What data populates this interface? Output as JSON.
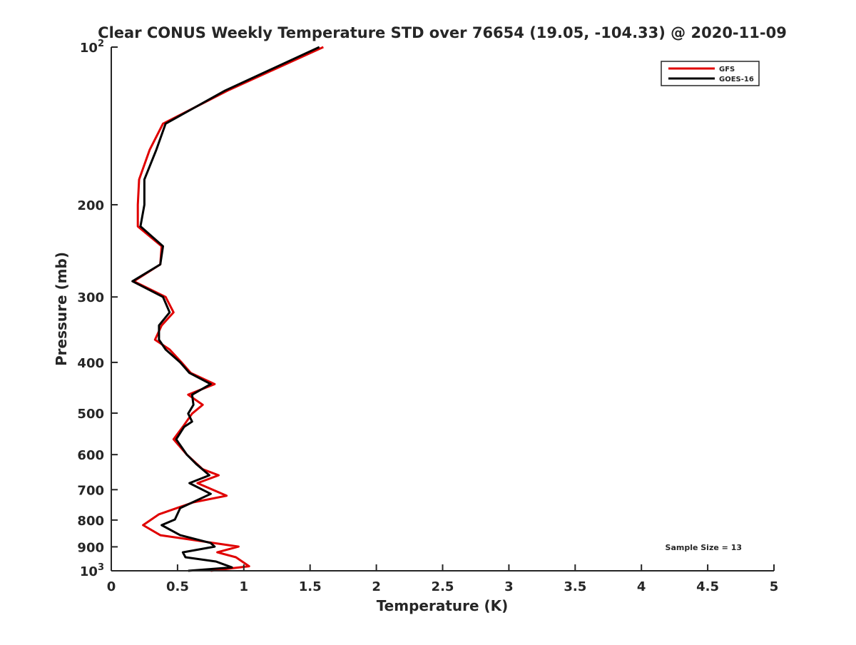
{
  "chart_data": {
    "type": "line",
    "title": "Clear CONUS Weekly Temperature STD over 76654 (19.05, -104.33) @ 2020-11-09",
    "xlabel": "Temperature (K)",
    "ylabel": "Pressure (mb)",
    "xlim": [
      0,
      5
    ],
    "ylim": [
      100,
      1000
    ],
    "yscale": "log",
    "yreversed": true,
    "grid": false,
    "x_ticks": [
      "0",
      "0.5",
      "1",
      "1.5",
      "2",
      "2.5",
      "3",
      "3.5",
      "4",
      "4.5",
      "5"
    ],
    "x_tick_values": [
      0,
      0.5,
      1,
      1.5,
      2,
      2.5,
      3,
      3.5,
      4,
      4.5,
      5
    ],
    "y_ticks": [
      {
        "value": 100,
        "base": "10",
        "exp": "2"
      },
      {
        "value": 200,
        "label": "200"
      },
      {
        "value": 300,
        "label": "300"
      },
      {
        "value": 400,
        "label": "400"
      },
      {
        "value": 500,
        "label": "500"
      },
      {
        "value": 600,
        "label": "600"
      },
      {
        "value": 700,
        "label": "700"
      },
      {
        "value": 800,
        "label": "800"
      },
      {
        "value": 900,
        "label": "900"
      },
      {
        "value": 1000,
        "base": "10",
        "exp": "3"
      }
    ],
    "legend_position": "top-right",
    "annotation": "Sample Size = 13",
    "series": [
      {
        "name": "GFS",
        "color": "#e00000",
        "pressure": [
          100,
          121,
          140,
          157,
          179,
          200,
          220,
          240,
          260,
          280,
          300,
          321,
          340,
          362,
          378,
          400,
          419,
          440,
          461,
          482,
          501,
          531,
          561,
          600,
          640,
          657,
          680,
          719,
          740,
          780,
          818,
          855,
          899,
          922,
          942,
          980,
          1000
        ],
        "temperature": [
          1.6,
          0.88,
          0.39,
          0.29,
          0.21,
          0.2,
          0.2,
          0.38,
          0.37,
          0.17,
          0.41,
          0.47,
          0.38,
          0.33,
          0.44,
          0.53,
          0.6,
          0.78,
          0.58,
          0.69,
          0.61,
          0.54,
          0.47,
          0.57,
          0.69,
          0.81,
          0.65,
          0.87,
          0.62,
          0.36,
          0.24,
          0.37,
          0.96,
          0.8,
          0.94,
          1.04,
          0.75
        ]
      },
      {
        "name": "GOES-16",
        "color": "#000000",
        "pressure": [
          100,
          121,
          140,
          157,
          179,
          200,
          220,
          240,
          260,
          280,
          300,
          321,
          340,
          362,
          378,
          400,
          419,
          440,
          461,
          482,
          501,
          519,
          531,
          561,
          600,
          625,
          657,
          680,
          713,
          759,
          798,
          818,
          855,
          885,
          899,
          922,
          942,
          960,
          985,
          1000
        ],
        "temperature": [
          1.57,
          0.86,
          0.41,
          0.34,
          0.25,
          0.25,
          0.22,
          0.39,
          0.37,
          0.16,
          0.39,
          0.44,
          0.36,
          0.36,
          0.41,
          0.52,
          0.59,
          0.75,
          0.61,
          0.62,
          0.58,
          0.61,
          0.55,
          0.49,
          0.57,
          0.64,
          0.74,
          0.59,
          0.75,
          0.52,
          0.48,
          0.38,
          0.52,
          0.75,
          0.78,
          0.54,
          0.56,
          0.79,
          0.91,
          0.58
        ]
      }
    ]
  }
}
